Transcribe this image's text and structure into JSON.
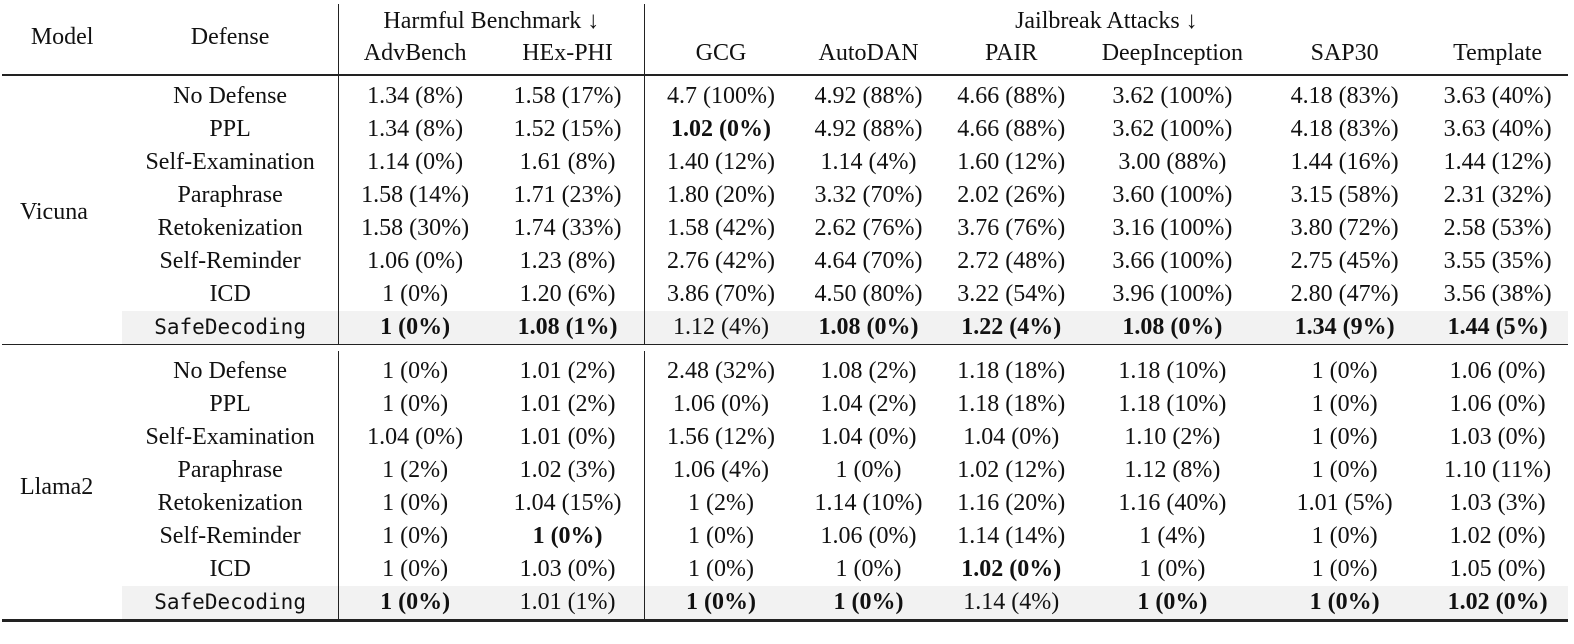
{
  "table": {
    "header": {
      "model_label": "Model",
      "defense_label": "Defense",
      "group_harmful": "Harmful Benchmark ↓",
      "group_jailbreak": "Jailbreak Attacks ↓",
      "columns": [
        "AdvBench",
        "HEx-PHI",
        "GCG",
        "AutoDAN",
        "PAIR",
        "DeepInception",
        "SAP30",
        "Template"
      ]
    },
    "groups": [
      {
        "model": "Vicuna",
        "rows": [
          {
            "defense": "No Defense",
            "cells": [
              {
                "v": "1.34 (8%)",
                "b": false
              },
              {
                "v": "1.58 (17%)",
                "b": false
              },
              {
                "v": "4.7 (100%)",
                "b": false
              },
              {
                "v": "4.92 (88%)",
                "b": false
              },
              {
                "v": "4.66 (88%)",
                "b": false
              },
              {
                "v": "3.62 (100%)",
                "b": false
              },
              {
                "v": "4.18 (83%)",
                "b": false
              },
              {
                "v": "3.63 (40%)",
                "b": false
              }
            ]
          },
          {
            "defense": "PPL",
            "cells": [
              {
                "v": "1.34 (8%)",
                "b": false
              },
              {
                "v": "1.52 (15%)",
                "b": false
              },
              {
                "v": "1.02 (0%)",
                "b": true
              },
              {
                "v": "4.92 (88%)",
                "b": false
              },
              {
                "v": "4.66 (88%)",
                "b": false
              },
              {
                "v": "3.62 (100%)",
                "b": false
              },
              {
                "v": "4.18 (83%)",
                "b": false
              },
              {
                "v": "3.63 (40%)",
                "b": false
              }
            ]
          },
          {
            "defense": "Self-Examination",
            "cells": [
              {
                "v": "1.14 (0%)",
                "b": false
              },
              {
                "v": "1.61 (8%)",
                "b": false
              },
              {
                "v": "1.40 (12%)",
                "b": false
              },
              {
                "v": "1.14 (4%)",
                "b": false
              },
              {
                "v": "1.60 (12%)",
                "b": false
              },
              {
                "v": "3.00 (88%)",
                "b": false
              },
              {
                "v": "1.44 (16%)",
                "b": false
              },
              {
                "v": "1.44 (12%)",
                "b": false
              }
            ]
          },
          {
            "defense": "Paraphrase",
            "cells": [
              {
                "v": "1.58 (14%)",
                "b": false
              },
              {
                "v": "1.71 (23%)",
                "b": false
              },
              {
                "v": "1.80 (20%)",
                "b": false
              },
              {
                "v": "3.32 (70%)",
                "b": false
              },
              {
                "v": "2.02 (26%)",
                "b": false
              },
              {
                "v": "3.60 (100%)",
                "b": false
              },
              {
                "v": "3.15 (58%)",
                "b": false
              },
              {
                "v": "2.31 (32%)",
                "b": false
              }
            ]
          },
          {
            "defense": "Retokenization",
            "cells": [
              {
                "v": "1.58 (30%)",
                "b": false
              },
              {
                "v": "1.74 (33%)",
                "b": false
              },
              {
                "v": "1.58 (42%)",
                "b": false
              },
              {
                "v": "2.62 (76%)",
                "b": false
              },
              {
                "v": "3.76 (76%)",
                "b": false
              },
              {
                "v": "3.16 (100%)",
                "b": false
              },
              {
                "v": "3.80 (72%)",
                "b": false
              },
              {
                "v": "2.58 (53%)",
                "b": false
              }
            ]
          },
          {
            "defense": "Self-Reminder",
            "cells": [
              {
                "v": "1.06 (0%)",
                "b": false
              },
              {
                "v": "1.23 (8%)",
                "b": false
              },
              {
                "v": "2.76 (42%)",
                "b": false
              },
              {
                "v": "4.64 (70%)",
                "b": false
              },
              {
                "v": "2.72 (48%)",
                "b": false
              },
              {
                "v": "3.66 (100%)",
                "b": false
              },
              {
                "v": "2.75 (45%)",
                "b": false
              },
              {
                "v": "3.55 (35%)",
                "b": false
              }
            ]
          },
          {
            "defense": "ICD",
            "cells": [
              {
                "v": "1 (0%)",
                "b": false
              },
              {
                "v": "1.20 (6%)",
                "b": false
              },
              {
                "v": "3.86 (70%)",
                "b": false
              },
              {
                "v": "4.50 (80%)",
                "b": false
              },
              {
                "v": "3.22 (54%)",
                "b": false
              },
              {
                "v": "3.96 (100%)",
                "b": false
              },
              {
                "v": "2.80 (47%)",
                "b": false
              },
              {
                "v": "3.56 (38%)",
                "b": false
              }
            ]
          },
          {
            "defense": "SafeDecoding",
            "highlight": true,
            "cells": [
              {
                "v": "1 (0%)",
                "b": true
              },
              {
                "v": "1.08 (1%)",
                "b": true
              },
              {
                "v": "1.12 (4%)",
                "b": false
              },
              {
                "v": "1.08 (0%)",
                "b": true
              },
              {
                "v": "1.22 (4%)",
                "b": true
              },
              {
                "v": "1.08 (0%)",
                "b": true
              },
              {
                "v": "1.34 (9%)",
                "b": true
              },
              {
                "v": "1.44 (5%)",
                "b": true
              }
            ]
          }
        ]
      },
      {
        "model": "Llama2",
        "rows": [
          {
            "defense": "No Defense",
            "cells": [
              {
                "v": "1 (0%)",
                "b": false
              },
              {
                "v": "1.01 (2%)",
                "b": false
              },
              {
                "v": "2.48 (32%)",
                "b": false
              },
              {
                "v": "1.08 (2%)",
                "b": false
              },
              {
                "v": "1.18 (18%)",
                "b": false
              },
              {
                "v": "1.18 (10%)",
                "b": false
              },
              {
                "v": "1 (0%)",
                "b": false
              },
              {
                "v": "1.06 (0%)",
                "b": false
              }
            ]
          },
          {
            "defense": "PPL",
            "cells": [
              {
                "v": "1 (0%)",
                "b": false
              },
              {
                "v": "1.01 (2%)",
                "b": false
              },
              {
                "v": "1.06 (0%)",
                "b": false
              },
              {
                "v": "1.04 (2%)",
                "b": false
              },
              {
                "v": "1.18 (18%)",
                "b": false
              },
              {
                "v": "1.18 (10%)",
                "b": false
              },
              {
                "v": "1 (0%)",
                "b": false
              },
              {
                "v": "1.06 (0%)",
                "b": false
              }
            ]
          },
          {
            "defense": "Self-Examination",
            "cells": [
              {
                "v": "1.04 (0%)",
                "b": false
              },
              {
                "v": "1.01 (0%)",
                "b": false
              },
              {
                "v": "1.56 (12%)",
                "b": false
              },
              {
                "v": "1.04 (0%)",
                "b": false
              },
              {
                "v": "1.04 (0%)",
                "b": false
              },
              {
                "v": "1.10 (2%)",
                "b": false
              },
              {
                "v": "1 (0%)",
                "b": false
              },
              {
                "v": "1.03 (0%)",
                "b": false
              }
            ]
          },
          {
            "defense": "Paraphrase",
            "cells": [
              {
                "v": "1 (2%)",
                "b": false
              },
              {
                "v": "1.02 (3%)",
                "b": false
              },
              {
                "v": "1.06 (4%)",
                "b": false
              },
              {
                "v": "1 (0%)",
                "b": false
              },
              {
                "v": "1.02 (12%)",
                "b": false
              },
              {
                "v": "1.12 (8%)",
                "b": false
              },
              {
                "v": "1 (0%)",
                "b": false
              },
              {
                "v": "1.10 (11%)",
                "b": false
              }
            ]
          },
          {
            "defense": "Retokenization",
            "cells": [
              {
                "v": "1 (0%)",
                "b": false
              },
              {
                "v": "1.04 (15%)",
                "b": false
              },
              {
                "v": "1 (2%)",
                "b": false
              },
              {
                "v": "1.14 (10%)",
                "b": false
              },
              {
                "v": "1.16 (20%)",
                "b": false
              },
              {
                "v": "1.16 (40%)",
                "b": false
              },
              {
                "v": "1.01 (5%)",
                "b": false
              },
              {
                "v": "1.03 (3%)",
                "b": false
              }
            ]
          },
          {
            "defense": "Self-Reminder",
            "cells": [
              {
                "v": "1 (0%)",
                "b": false
              },
              {
                "v": "1 (0%)",
                "b": true
              },
              {
                "v": "1 (0%)",
                "b": false
              },
              {
                "v": "1.06 (0%)",
                "b": false
              },
              {
                "v": "1.14 (14%)",
                "b": false
              },
              {
                "v": "1 (4%)",
                "b": false
              },
              {
                "v": "1 (0%)",
                "b": false
              },
              {
                "v": "1.02 (0%)",
                "b": false
              }
            ]
          },
          {
            "defense": "ICD",
            "cells": [
              {
                "v": "1 (0%)",
                "b": false
              },
              {
                "v": "1.03 (0%)",
                "b": false
              },
              {
                "v": "1 (0%)",
                "b": false
              },
              {
                "v": "1 (0%)",
                "b": false
              },
              {
                "v": "1.02 (0%)",
                "b": true
              },
              {
                "v": "1 (0%)",
                "b": false
              },
              {
                "v": "1 (0%)",
                "b": false
              },
              {
                "v": "1.05 (0%)",
                "b": false
              }
            ]
          },
          {
            "defense": "SafeDecoding",
            "highlight": true,
            "cells": [
              {
                "v": "1 (0%)",
                "b": true
              },
              {
                "v": "1.01 (1%)",
                "b": false
              },
              {
                "v": "1 (0%)",
                "b": true
              },
              {
                "v": "1 (0%)",
                "b": true
              },
              {
                "v": "1.14 (4%)",
                "b": false
              },
              {
                "v": "1 (0%)",
                "b": true
              },
              {
                "v": "1 (0%)",
                "b": true
              },
              {
                "v": "1.02 (0%)",
                "b": true
              }
            ]
          }
        ]
      }
    ]
  },
  "colors": {
    "highlight_row_bg": "#f2f2f2",
    "rule": "#222222",
    "text": "#111111"
  }
}
